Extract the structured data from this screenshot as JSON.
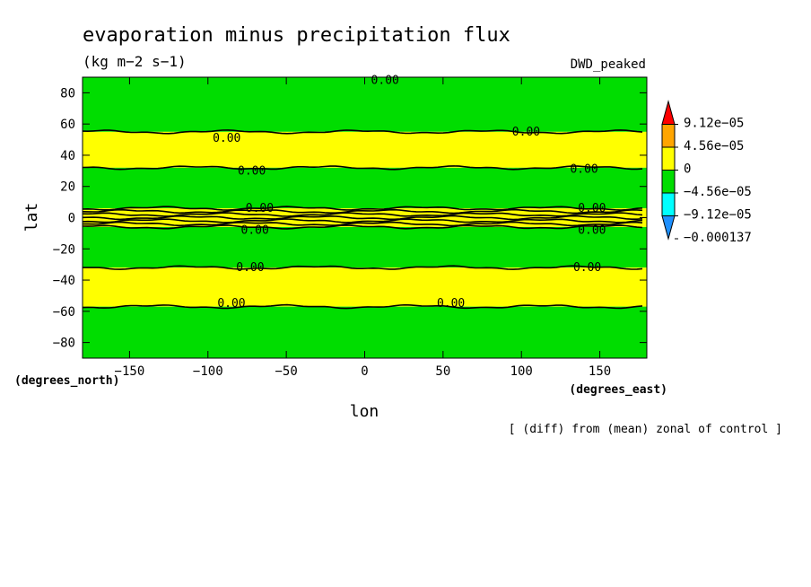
{
  "chart_data": {
    "type": "heatmap",
    "title": "evaporation minus precipitation flux",
    "units": "(kg m−2 s−1)",
    "model_label": "DWD_peaked",
    "footnote": "[ (diff) from (mean) zonal of control ]",
    "xlabel": "lon",
    "ylabel": "lat",
    "x_units": "(degrees_east)",
    "y_units": "(degrees_north)",
    "xlim": [
      -180,
      180
    ],
    "ylim": [
      -90,
      90
    ],
    "x_ticks": [
      -150,
      -100,
      -50,
      0,
      50,
      100,
      150
    ],
    "y_ticks": [
      -80,
      -60,
      -40,
      -20,
      0,
      20,
      40,
      60,
      80
    ],
    "x_tick_labels": [
      "−150",
      "−100",
      "−50",
      "0",
      "50",
      "100",
      "150"
    ],
    "y_tick_labels": [
      "−80",
      "−60",
      "−40",
      "−20",
      "0",
      "20",
      "40",
      "60",
      "80"
    ],
    "colorbar": {
      "colors": [
        "#ff0000",
        "#ffa500",
        "#ffff00",
        "#00dd00",
        "#00ffff",
        "#1e90ff"
      ],
      "labels": [
        "9.12e−05",
        "4.56e−05",
        "0",
        "−4.56e−05",
        "−9.12e−05",
        "−0.000137"
      ],
      "levels": [
        9.12e-05,
        4.56e-05,
        0,
        -4.56e-05,
        -9.12e-05,
        -0.000137
      ]
    },
    "bands": [
      {
        "lat_min": 55,
        "lat_max": 90,
        "color": "#00dd00"
      },
      {
        "lat_min": 32,
        "lat_max": 55,
        "color": "#ffff00"
      },
      {
        "lat_min": 6,
        "lat_max": 32,
        "color": "#00dd00"
      },
      {
        "lat_min": -6,
        "lat_max": 6,
        "color": "#ffff00"
      },
      {
        "lat_min": -32,
        "lat_max": -6,
        "color": "#00dd00"
      },
      {
        "lat_min": -57,
        "lat_max": -32,
        "color": "#ffff00"
      },
      {
        "lat_min": -90,
        "lat_max": -57,
        "color": "#00dd00"
      }
    ],
    "contour_lines": [
      55,
      32,
      6,
      4,
      2,
      0,
      -2,
      -4,
      -6,
      -32,
      -57
    ],
    "contour_labels": [
      {
        "lon": -88,
        "lat": 51,
        "text": "0.00"
      },
      {
        "lon": 103,
        "lat": 55,
        "text": "0.00"
      },
      {
        "lon": -72,
        "lat": 30,
        "text": "0.00"
      },
      {
        "lon": 140,
        "lat": 31,
        "text": "0.00"
      },
      {
        "lon": -67,
        "lat": 6,
        "text": "0.00"
      },
      {
        "lon": 145,
        "lat": 6,
        "text": "0.00"
      },
      {
        "lon": -70,
        "lat": -8,
        "text": "0.00"
      },
      {
        "lon": 145,
        "lat": -8,
        "text": "0.00"
      },
      {
        "lon": -73,
        "lat": -32,
        "text": "0.00"
      },
      {
        "lon": 142,
        "lat": -32,
        "text": "0.00"
      },
      {
        "lon": -85,
        "lat": -55,
        "text": "0.00"
      },
      {
        "lon": 55,
        "lat": -55,
        "text": "0.00"
      },
      {
        "lon": 13,
        "lat": 88,
        "text": "0.00"
      }
    ],
    "grid": false
  }
}
